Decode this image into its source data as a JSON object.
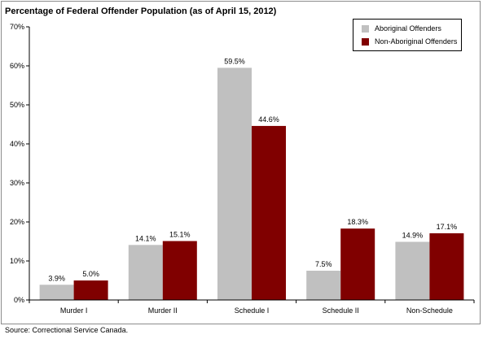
{
  "chart_data": {
    "type": "bar",
    "title": "Percentage of Federal Offender Population (as of April 15, 2012)",
    "categories": [
      "Murder I",
      "Murder II",
      "Schedule I",
      "Schedule II",
      "Non-Schedule"
    ],
    "series": [
      {
        "name": "Aboriginal Offenders",
        "color": "#c0c0c0",
        "values": [
          3.9,
          14.1,
          59.5,
          7.5,
          14.9
        ]
      },
      {
        "name": "Non-Aboriginal Offenders",
        "color": "#800000",
        "values": [
          5.0,
          15.1,
          44.6,
          18.3,
          17.1
        ]
      }
    ],
    "data_labels": [
      [
        "3.9%",
        "14.1%",
        "59.5%",
        "7.5%",
        "14.9%"
      ],
      [
        "5.0%",
        "15.1%",
        "44.6%",
        "18.3%",
        "17.1%"
      ]
    ],
    "yticks": [
      "0%",
      "10%",
      "20%",
      "30%",
      "40%",
      "50%",
      "60%",
      "70%"
    ],
    "ylim": [
      0,
      70
    ],
    "grid": false,
    "legend_position": "top-right"
  },
  "source": "Source:  Correctional Service Canada."
}
